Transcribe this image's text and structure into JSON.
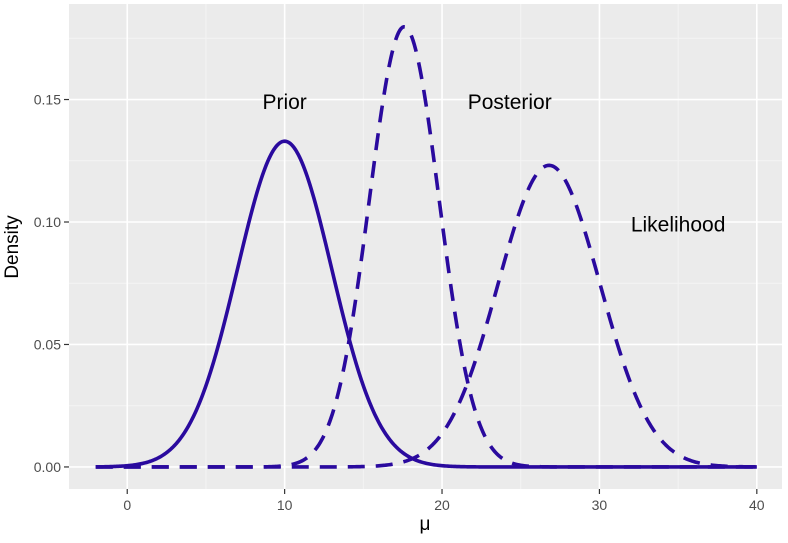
{
  "chart_data": {
    "type": "line",
    "title": "",
    "xlabel": "μ",
    "ylabel": "Density",
    "xlim": [
      -3.7,
      41.6
    ],
    "ylim": [
      -0.009,
      0.189
    ],
    "x_ticks": [
      0,
      10,
      20,
      30,
      40
    ],
    "x_tick_labels": [
      "0",
      "10",
      "20",
      "30",
      "40"
    ],
    "y_ticks": [
      0.0,
      0.05,
      0.1,
      0.15
    ],
    "y_tick_labels": [
      "0.00",
      "0.05",
      "0.10",
      "0.15"
    ],
    "grid": true,
    "legend": "none",
    "series": [
      {
        "key": "prior",
        "distribution": "normal",
        "mean": 10,
        "sd": 3,
        "x_range": [
          -2,
          40
        ],
        "line": "solid"
      },
      {
        "key": "posterior",
        "distribution": "normal",
        "mean": 17.6,
        "sd": 2.22,
        "x_range": [
          -2,
          40
        ],
        "line": "dashed"
      },
      {
        "key": "likelihood",
        "distribution": "normal",
        "mean": 26.8,
        "sd": 3.24,
        "x_range": [
          -2,
          40
        ],
        "line": "dashed"
      }
    ],
    "annotations": [
      {
        "key": "prior",
        "text": "Prior",
        "x": 10,
        "y": 0.149
      },
      {
        "key": "posterior",
        "text": "Posterior",
        "x": 24.3,
        "y": 0.149
      },
      {
        "key": "likelihood",
        "text": "Likelihood",
        "x": 35,
        "y": 0.099
      }
    ],
    "colors": {
      "line": "#2a0a9e",
      "panel": "#ebebeb",
      "grid_major": "#ffffff",
      "grid_minor": "#f4f4f4",
      "tick": "#333333"
    }
  }
}
